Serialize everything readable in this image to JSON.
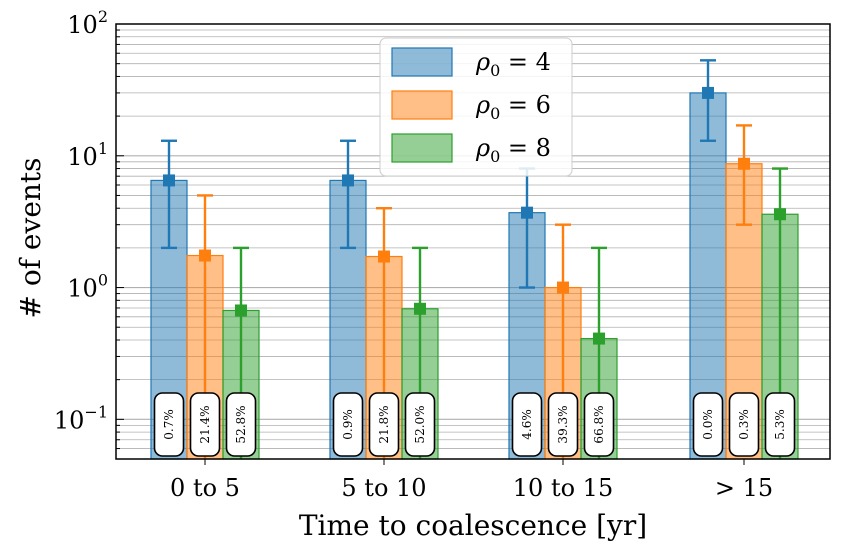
{
  "colors": {
    "series": [
      "#1f77b4",
      "#ff7f0e",
      "#2ca02c"
    ],
    "grid": "#b0b0b0"
  },
  "chart_data": {
    "type": "bar",
    "xlabel": "Time to coalescence [yr]",
    "ylabel": "# of events",
    "yscale": "log",
    "ylim": [
      0.05,
      100
    ],
    "grid": true,
    "legend_position": "top-center",
    "categories": [
      "0 to 5",
      "5 to 10",
      "10 to 15",
      "> 15"
    ],
    "series": [
      {
        "name": "ρ0 = 4",
        "legend_base": "ρ",
        "legend_sub": "0",
        "legend_rest": " = 4",
        "values": [
          6.5,
          6.5,
          3.7,
          30
        ],
        "err_low": [
          2,
          2,
          1,
          13
        ],
        "err_high": [
          13,
          13,
          8,
          53
        ],
        "percents": [
          "0.7%",
          "0.9%",
          "4.6%",
          "0.0%"
        ]
      },
      {
        "name": "ρ0 = 6",
        "legend_base": "ρ",
        "legend_sub": "0",
        "legend_rest": " = 6",
        "values": [
          1.75,
          1.72,
          1.0,
          8.7
        ],
        "err_low": [
          0.05,
          0.05,
          0.05,
          3
        ],
        "err_high": [
          5,
          4,
          3,
          17
        ],
        "percents": [
          "21.4%",
          "21.8%",
          "39.3%",
          "0.3%"
        ]
      },
      {
        "name": "ρ0 = 8",
        "legend_base": "ρ",
        "legend_sub": "0",
        "legend_rest": " = 8",
        "values": [
          0.67,
          0.69,
          0.41,
          3.6
        ],
        "err_low": [
          0.05,
          0.05,
          0.05,
          0.05
        ],
        "err_high": [
          2,
          2,
          2,
          8
        ],
        "percents": [
          "52.8%",
          "52.0%",
          "66.8%",
          "5.3%"
        ]
      }
    ],
    "y_ticks": [
      {
        "value": 0.1,
        "base": "10",
        "exp": "−1"
      },
      {
        "value": 1,
        "base": "10",
        "exp": "0"
      },
      {
        "value": 10,
        "base": "10",
        "exp": "1"
      },
      {
        "value": 100,
        "base": "10",
        "exp": "2"
      }
    ]
  }
}
